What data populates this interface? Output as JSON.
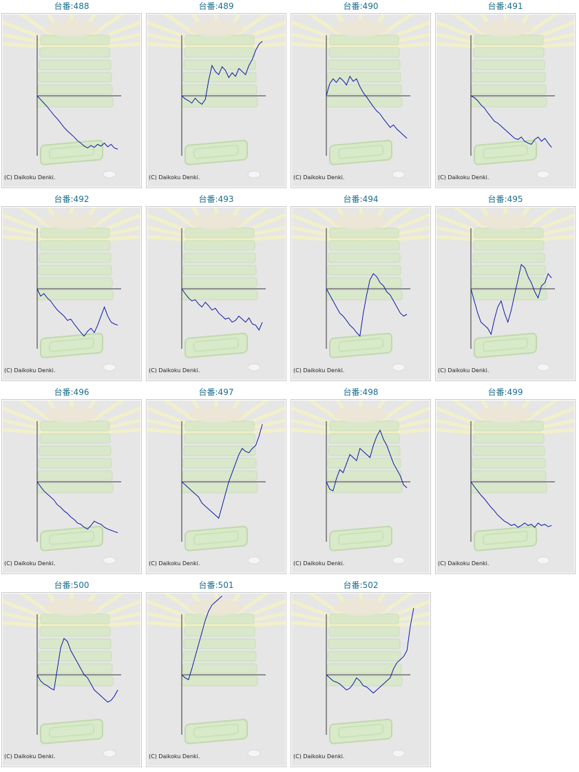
{
  "caption_prefix": "台番:",
  "copyright": "(C) Daikoku Denki.",
  "colors": {
    "caption": "#1a6e8e",
    "line": "#0b1aa8",
    "panel_bg": "#e6e6e6"
  },
  "machines": [
    {
      "number": "488",
      "values": [
        0,
        -6,
        -12,
        -18,
        -25,
        -32,
        -38,
        -45,
        -52,
        -58,
        -63,
        -68,
        -74,
        -78,
        -83,
        -86,
        -82,
        -85,
        -80,
        -83,
        -78,
        -84,
        -80,
        -86,
        -88
      ]
    },
    {
      "number": "489",
      "values": [
        0,
        -5,
        -8,
        -12,
        -4,
        -10,
        -14,
        -6,
        25,
        50,
        40,
        35,
        48,
        42,
        30,
        38,
        32,
        45,
        40,
        35,
        50,
        60,
        75,
        85,
        90
      ]
    },
    {
      "number": "490",
      "values": [
        0,
        20,
        28,
        22,
        30,
        25,
        18,
        32,
        24,
        28,
        15,
        5,
        -2,
        -10,
        -18,
        -25,
        -30,
        -38,
        -45,
        -52,
        -48,
        -55,
        -60,
        -65,
        -70
      ]
    },
    {
      "number": "491",
      "values": [
        0,
        -3,
        -8,
        -15,
        -20,
        -28,
        -35,
        -42,
        -45,
        -50,
        -55,
        -60,
        -65,
        -70,
        -72,
        -68,
        -75,
        -78,
        -80,
        -72,
        -68,
        -75,
        -70,
        -78,
        -85
      ]
    },
    {
      "number": "492",
      "values": [
        0,
        -12,
        -8,
        -15,
        -20,
        -28,
        -35,
        -40,
        -45,
        -52,
        -50,
        -58,
        -65,
        -72,
        -78,
        -70,
        -65,
        -72,
        -60,
        -45,
        -30,
        -45,
        -55,
        -58,
        -60
      ]
    },
    {
      "number": "493",
      "values": [
        0,
        -8,
        -15,
        -20,
        -18,
        -25,
        -30,
        -22,
        -28,
        -35,
        -32,
        -40,
        -45,
        -50,
        -48,
        -55,
        -52,
        -45,
        -50,
        -55,
        -48,
        -58,
        -60,
        -68,
        -55
      ]
    },
    {
      "number": "494",
      "values": [
        0,
        -10,
        -20,
        -30,
        -40,
        -45,
        -52,
        -60,
        -65,
        -72,
        -78,
        -40,
        -10,
        15,
        25,
        20,
        10,
        5,
        -5,
        -10,
        -20,
        -30,
        -40,
        -45,
        -42
      ]
    },
    {
      "number": "495",
      "values": [
        0,
        -20,
        -40,
        -55,
        -60,
        -65,
        -75,
        -50,
        -30,
        -20,
        -40,
        -55,
        -35,
        -10,
        15,
        40,
        35,
        20,
        10,
        -5,
        -15,
        5,
        10,
        25,
        18
      ]
    },
    {
      "number": "496",
      "values": [
        0,
        -8,
        -15,
        -20,
        -25,
        -30,
        -38,
        -42,
        -48,
        -52,
        -58,
        -62,
        -68,
        -70,
        -75,
        -78,
        -72,
        -65,
        -68,
        -70,
        -75,
        -78,
        -80,
        -82,
        -84
      ]
    },
    {
      "number": "497",
      "values": [
        0,
        -5,
        -10,
        -15,
        -20,
        -25,
        -35,
        -40,
        -45,
        -50,
        -55,
        -60,
        -40,
        -20,
        0,
        15,
        30,
        45,
        55,
        50,
        48,
        55,
        60,
        75,
        95
      ]
    },
    {
      "number": "498",
      "values": [
        0,
        -12,
        -15,
        5,
        20,
        15,
        30,
        45,
        40,
        35,
        55,
        50,
        45,
        40,
        60,
        75,
        85,
        70,
        60,
        45,
        30,
        20,
        10,
        -5,
        -10
      ]
    },
    {
      "number": "499",
      "values": [
        0,
        -8,
        -15,
        -22,
        -28,
        -35,
        -42,
        -48,
        -55,
        -60,
        -65,
        -68,
        -72,
        -70,
        -75,
        -72,
        -68,
        -72,
        -70,
        -75,
        -68,
        -72,
        -70,
        -74,
        -72
      ]
    },
    {
      "number": "500",
      "values": [
        0,
        -10,
        -15,
        -18,
        -22,
        -25,
        10,
        45,
        60,
        55,
        40,
        30,
        20,
        10,
        0,
        -5,
        -15,
        -25,
        -30,
        -35,
        -40,
        -45,
        -42,
        -35,
        -25
      ]
    },
    {
      "number": "501",
      "values": [
        0,
        -5,
        -8,
        10,
        30,
        50,
        70,
        90,
        105,
        115,
        120,
        125,
        130
      ]
    },
    {
      "number": "502",
      "values": [
        0,
        -5,
        -10,
        -12,
        -15,
        -20,
        -25,
        -22,
        -15,
        -5,
        -10,
        -18,
        -20,
        -25,
        -30,
        -25,
        -20,
        -15,
        -10,
        -5,
        10,
        20,
        25,
        30,
        40,
        80,
        110
      ]
    }
  ]
}
